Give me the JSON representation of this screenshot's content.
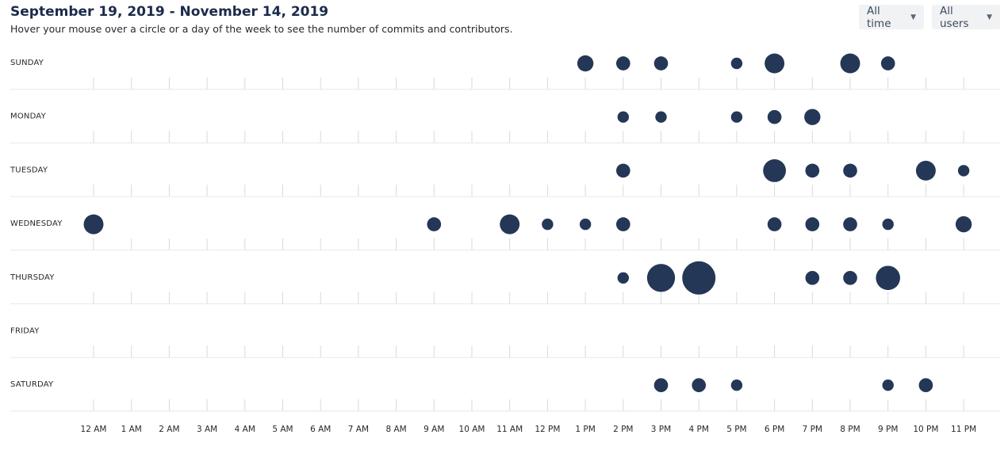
{
  "header": {
    "title": "September 19, 2019 - November 14, 2019",
    "subtitle": "Hover your mouse over a circle or a day of the week to see the number of commits and contributors."
  },
  "filters": {
    "time_label": "All time",
    "users_label": "All users"
  },
  "colors": {
    "bubble": "#243757"
  },
  "chart_data": {
    "type": "scatter",
    "title": "September 19, 2019 - November 14, 2019",
    "days": [
      "SUNDAY",
      "MONDAY",
      "TUESDAY",
      "WEDNESDAY",
      "THURSDAY",
      "FRIDAY",
      "SATURDAY"
    ],
    "hours": [
      "12 AM",
      "1 AM",
      "2 AM",
      "3 AM",
      "4 AM",
      "5 AM",
      "6 AM",
      "7 AM",
      "8 AM",
      "9 AM",
      "10 AM",
      "11 AM",
      "12 PM",
      "1 PM",
      "2 PM",
      "3 PM",
      "4 PM",
      "5 PM",
      "6 PM",
      "7 PM",
      "8 PM",
      "9 PM",
      "10 PM",
      "11 PM"
    ],
    "value_note": "relative activity per day/hour, estimated from bubble size",
    "points": [
      {
        "day": "SUNDAY",
        "hour": "1 PM",
        "value": 4
      },
      {
        "day": "SUNDAY",
        "hour": "2 PM",
        "value": 3
      },
      {
        "day": "SUNDAY",
        "hour": "3 PM",
        "value": 3
      },
      {
        "day": "SUNDAY",
        "hour": "5 PM",
        "value": 2
      },
      {
        "day": "SUNDAY",
        "hour": "6 PM",
        "value": 6
      },
      {
        "day": "SUNDAY",
        "hour": "8 PM",
        "value": 6
      },
      {
        "day": "SUNDAY",
        "hour": "9 PM",
        "value": 3
      },
      {
        "day": "MONDAY",
        "hour": "2 PM",
        "value": 2
      },
      {
        "day": "MONDAY",
        "hour": "3 PM",
        "value": 2
      },
      {
        "day": "MONDAY",
        "hour": "5 PM",
        "value": 2
      },
      {
        "day": "MONDAY",
        "hour": "6 PM",
        "value": 3
      },
      {
        "day": "MONDAY",
        "hour": "7 PM",
        "value": 4
      },
      {
        "day": "TUESDAY",
        "hour": "2 PM",
        "value": 3
      },
      {
        "day": "TUESDAY",
        "hour": "6 PM",
        "value": 8
      },
      {
        "day": "TUESDAY",
        "hour": "7 PM",
        "value": 3
      },
      {
        "day": "TUESDAY",
        "hour": "8 PM",
        "value": 3
      },
      {
        "day": "TUESDAY",
        "hour": "10 PM",
        "value": 6
      },
      {
        "day": "TUESDAY",
        "hour": "11 PM",
        "value": 2
      },
      {
        "day": "WEDNESDAY",
        "hour": "12 AM",
        "value": 6
      },
      {
        "day": "WEDNESDAY",
        "hour": "9 AM",
        "value": 3
      },
      {
        "day": "WEDNESDAY",
        "hour": "11 AM",
        "value": 6
      },
      {
        "day": "WEDNESDAY",
        "hour": "12 PM",
        "value": 2
      },
      {
        "day": "WEDNESDAY",
        "hour": "1 PM",
        "value": 2
      },
      {
        "day": "WEDNESDAY",
        "hour": "2 PM",
        "value": 3
      },
      {
        "day": "WEDNESDAY",
        "hour": "6 PM",
        "value": 3
      },
      {
        "day": "WEDNESDAY",
        "hour": "7 PM",
        "value": 3
      },
      {
        "day": "WEDNESDAY",
        "hour": "8 PM",
        "value": 3
      },
      {
        "day": "WEDNESDAY",
        "hour": "9 PM",
        "value": 2
      },
      {
        "day": "WEDNESDAY",
        "hour": "11 PM",
        "value": 4
      },
      {
        "day": "THURSDAY",
        "hour": "2 PM",
        "value": 2
      },
      {
        "day": "THURSDAY",
        "hour": "3 PM",
        "value": 12
      },
      {
        "day": "THURSDAY",
        "hour": "4 PM",
        "value": 17
      },
      {
        "day": "THURSDAY",
        "hour": "7 PM",
        "value": 3
      },
      {
        "day": "THURSDAY",
        "hour": "8 PM",
        "value": 3
      },
      {
        "day": "THURSDAY",
        "hour": "9 PM",
        "value": 9
      },
      {
        "day": "SATURDAY",
        "hour": "3 PM",
        "value": 3
      },
      {
        "day": "SATURDAY",
        "hour": "4 PM",
        "value": 3
      },
      {
        "day": "SATURDAY",
        "hour": "5 PM",
        "value": 2
      },
      {
        "day": "SATURDAY",
        "hour": "9 PM",
        "value": 2
      },
      {
        "day": "SATURDAY",
        "hour": "10 PM",
        "value": 3
      }
    ]
  }
}
